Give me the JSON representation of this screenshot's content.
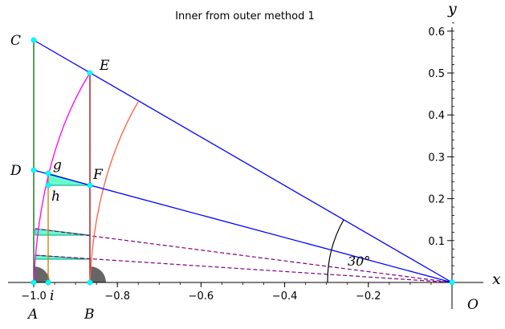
{
  "title": "Inner from outer method 1",
  "axes": {
    "x_label": "x",
    "y_label": "y",
    "origin_label": "O",
    "x_ticks": [
      {
        "value": -1.0,
        "label": "−1.0"
      },
      {
        "value": -0.8,
        "label": "−0.8"
      },
      {
        "value": -0.6,
        "label": "−0.6"
      },
      {
        "value": -0.4,
        "label": "−0.4"
      },
      {
        "value": -0.2,
        "label": "−0.2"
      }
    ],
    "y_ticks": [
      {
        "value": 0.1,
        "label": "0.1"
      },
      {
        "value": 0.2,
        "label": "0.2"
      },
      {
        "value": 0.3,
        "label": "0.3"
      },
      {
        "value": 0.4,
        "label": "0.4"
      },
      {
        "value": 0.5,
        "label": "0.5"
      },
      {
        "value": 0.6,
        "label": "0.6"
      }
    ],
    "x_range": [
      -1.05,
      0.05
    ],
    "y_range": [
      -0.06,
      0.62
    ]
  },
  "angle_label": "30°",
  "point_labels": {
    "C": "C",
    "E": "E",
    "D": "D",
    "F": "F",
    "g": "g",
    "h": "h",
    "A": "A",
    "i": "i",
    "B": "B"
  },
  "colors": {
    "blue": "#0000ff",
    "magenta": "#ff00ff",
    "orange_arc": "#ff6040",
    "green": "#006400",
    "darkred": "#a00000",
    "orange": "#cc7a00",
    "purple": "#800080",
    "cyan": "#00ffff",
    "teal_fill": "#66ffcc",
    "gray": "#666666"
  }
}
